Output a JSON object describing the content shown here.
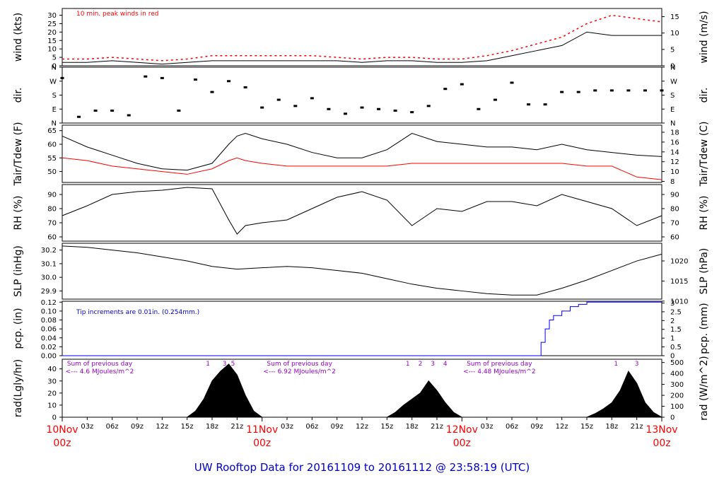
{
  "title": "UW Rooftop Data for 20161109  to  20161112 @ 23:58:19  (UTC)",
  "colors": {
    "primary": "#000000",
    "peak_wind": "#ff0000",
    "dewpoint": "#ff0000",
    "precip": "#0000ff",
    "title": "#0000cc",
    "date_label": "#ff0000",
    "radiation_note": "#9900cc",
    "precip_note": "#0000cc"
  },
  "chart_data": [
    {
      "id": "wind",
      "type": "line",
      "left_axis": {
        "label": "wind (kts)",
        "ticks": [
          "0",
          "5",
          "10",
          "15",
          "20",
          "25",
          "30"
        ],
        "range": [
          0,
          34
        ]
      },
      "right_axis": {
        "label": "wind (m/s)",
        "ticks": [
          "0",
          "5",
          "10",
          "15"
        ],
        "range": [
          0,
          17.5
        ]
      },
      "annotation": "10 min. peak winds in red",
      "series": [
        {
          "role": "speed",
          "x": [
            0,
            3,
            6,
            9,
            12,
            15,
            18,
            21,
            24,
            27,
            30,
            33,
            36,
            39,
            42,
            45,
            48,
            51,
            54,
            57,
            60,
            63,
            66,
            69,
            72
          ],
          "y": [
            2,
            2,
            3,
            2,
            1,
            2,
            3,
            3,
            3,
            3,
            3,
            3,
            2,
            3,
            3,
            2,
            2,
            3,
            6,
            9,
            12,
            20,
            18,
            18,
            18
          ]
        },
        {
          "role": "peak",
          "x": [
            0,
            3,
            6,
            9,
            12,
            15,
            18,
            21,
            24,
            27,
            30,
            33,
            36,
            39,
            42,
            45,
            48,
            51,
            54,
            57,
            60,
            63,
            66,
            69,
            72
          ],
          "y": [
            4,
            4,
            5,
            4,
            3,
            4,
            6,
            6,
            6,
            6,
            6,
            5,
            4,
            5,
            5,
            4,
            4,
            6,
            9,
            13,
            17,
            25,
            30,
            28,
            26
          ]
        }
      ]
    },
    {
      "id": "dir",
      "type": "scatter",
      "left_axis": {
        "label": "dir.",
        "ticks": [
          "N",
          "E",
          "S",
          "W",
          "N"
        ],
        "range": [
          0,
          360
        ]
      },
      "right_axis": {
        "label": "dir.",
        "ticks": [
          "N",
          "E",
          "S",
          "W",
          "N"
        ],
        "range": [
          0,
          360
        ]
      },
      "series": [
        {
          "role": "direction",
          "x": [
            0,
            2,
            4,
            6,
            8,
            10,
            12,
            14,
            16,
            18,
            20,
            22,
            24,
            26,
            28,
            30,
            32,
            34,
            36,
            38,
            40,
            42,
            44,
            46,
            48,
            50,
            52,
            54,
            56,
            58,
            60,
            62,
            64,
            66,
            68,
            70,
            72
          ],
          "y": [
            290,
            40,
            80,
            80,
            50,
            300,
            290,
            80,
            280,
            200,
            270,
            230,
            100,
            150,
            110,
            160,
            90,
            60,
            100,
            90,
            80,
            70,
            110,
            220,
            250,
            90,
            150,
            260,
            120,
            120,
            200,
            200,
            210,
            210,
            210,
            210,
            210
          ]
        }
      ]
    },
    {
      "id": "temp",
      "type": "line",
      "left_axis": {
        "label": "Tair/Tdew (F)",
        "ticks": [
          "50",
          "55",
          "60",
          "65"
        ],
        "range": [
          46,
          67
        ]
      },
      "right_axis": {
        "label": "Tair/Tdew (C)",
        "ticks": [
          "8",
          "10",
          "12",
          "14",
          "16",
          "18"
        ],
        "range": [
          7.78,
          19.44
        ]
      },
      "series": [
        {
          "role": "air",
          "x": [
            0,
            3,
            6,
            9,
            12,
            15,
            18,
            20,
            21,
            22,
            24,
            27,
            30,
            33,
            36,
            39,
            42,
            45,
            48,
            51,
            54,
            57,
            60,
            63,
            66,
            69,
            72
          ],
          "y": [
            63,
            59,
            56,
            53,
            51,
            50.5,
            53,
            60,
            63,
            64,
            62,
            60,
            57,
            55,
            55,
            58,
            64,
            61,
            60,
            59,
            59,
            58,
            60,
            58,
            57,
            56,
            55.5
          ]
        },
        {
          "role": "dew",
          "x": [
            0,
            3,
            6,
            9,
            12,
            15,
            18,
            20,
            21,
            22,
            24,
            27,
            30,
            33,
            36,
            39,
            42,
            45,
            48,
            51,
            54,
            57,
            60,
            63,
            66,
            69,
            72
          ],
          "y": [
            55,
            54,
            52,
            51,
            50,
            49,
            51,
            54,
            55,
            54,
            53,
            52,
            52,
            52,
            52,
            52,
            53,
            53,
            53,
            53,
            53,
            53,
            53,
            52,
            52,
            48,
            47
          ]
        }
      ]
    },
    {
      "id": "rh",
      "type": "line",
      "left_axis": {
        "label": "RH (%)",
        "ticks": [
          "60",
          "70",
          "80",
          "90"
        ],
        "range": [
          57,
          97
        ]
      },
      "right_axis": {
        "label": "RH (%)",
        "ticks": [
          "60",
          "70",
          "80",
          "90"
        ],
        "range": [
          57,
          97
        ]
      },
      "series": [
        {
          "role": "rh",
          "x": [
            0,
            3,
            6,
            9,
            12,
            15,
            18,
            20,
            21,
            22,
            24,
            27,
            30,
            33,
            36,
            39,
            42,
            45,
            48,
            51,
            54,
            57,
            60,
            63,
            66,
            69,
            72
          ],
          "y": [
            75,
            82,
            90,
            92,
            93,
            95,
            94,
            72,
            62,
            68,
            70,
            72,
            80,
            88,
            92,
            86,
            68,
            80,
            78,
            85,
            85,
            82,
            90,
            85,
            80,
            68,
            75
          ]
        }
      ]
    },
    {
      "id": "slp",
      "type": "line",
      "left_axis": {
        "label": "SLP (inHg)",
        "ticks": [
          "29.9",
          "30.0",
          "30.1",
          "30.2"
        ],
        "range": [
          29.84,
          30.25
        ]
      },
      "right_axis": {
        "label": "SLP (hPa)",
        "ticks": [
          "1010",
          "1015",
          "1020"
        ],
        "range": [
          1010.5,
          1024.4
        ]
      },
      "series": [
        {
          "role": "pressure",
          "x": [
            0,
            3,
            6,
            9,
            12,
            15,
            18,
            21,
            24,
            27,
            30,
            33,
            36,
            39,
            42,
            45,
            48,
            51,
            54,
            57,
            60,
            63,
            66,
            69,
            72
          ],
          "y": [
            30.23,
            30.22,
            30.2,
            30.18,
            30.15,
            30.12,
            30.08,
            30.06,
            30.07,
            30.08,
            30.07,
            30.05,
            30.03,
            29.99,
            29.95,
            29.92,
            29.9,
            29.88,
            29.87,
            29.87,
            29.92,
            29.98,
            30.05,
            30.12,
            30.17
          ]
        }
      ]
    },
    {
      "id": "pcp",
      "type": "line",
      "left_axis": {
        "label": "pcp. (in)",
        "ticks": [
          "0.00",
          "0.02",
          "0.04",
          "0.06",
          "0.08",
          "0.10",
          "0.12"
        ],
        "range": [
          0,
          0.122
        ]
      },
      "right_axis": {
        "label": "pcp. (mm)",
        "ticks": [
          "0",
          "0.5",
          "1",
          "1.5",
          "2",
          "2.5",
          "3"
        ],
        "range": [
          0,
          3.1
        ]
      },
      "annotation": "Tip increments are 0.01in. (0.254mm.)",
      "series": [
        {
          "role": "cumulative",
          "x": [
            0,
            57,
            57.5,
            58,
            58.5,
            59,
            60,
            61,
            62,
            63,
            72
          ],
          "y": [
            0,
            0,
            0.03,
            0.06,
            0.08,
            0.09,
            0.1,
            0.11,
            0.115,
            0.12,
            0.12
          ]
        }
      ]
    },
    {
      "id": "rad",
      "type": "area",
      "left_axis": {
        "label": "rad(Lgly/hr)",
        "ticks": [
          "0",
          "10",
          "20",
          "30",
          "40"
        ],
        "range": [
          0,
          48
        ]
      },
      "right_axis": {
        "label": "rad (W/m^2)",
        "ticks": [
          "0",
          "100",
          "200",
          "300",
          "400",
          "500"
        ],
        "range": [
          0,
          530
        ]
      },
      "annotations": [
        {
          "line1": "Sum of previous day",
          "line2": "<--- 4.6 MJoules/m^2",
          "day": 0
        },
        {
          "line1": "Sum of previous day",
          "line2": "<--- 6.92 MJoules/m^2",
          "day": 1
        },
        {
          "line1": "Sum of previous day",
          "line2": "<--- 4.48 MJoules/m^2",
          "day": 2
        }
      ],
      "hour_markers": [
        {
          "day": 0,
          "labels": [
            "1",
            "3",
            "5"
          ],
          "x": [
            17.5,
            19.5,
            20.5
          ]
        },
        {
          "day": 1,
          "labels": [
            "1",
            "2",
            "3",
            "4"
          ],
          "x": [
            41.5,
            43,
            44.5,
            46
          ]
        },
        {
          "day": 2,
          "labels": [
            "1",
            "3"
          ],
          "x": [
            66.5,
            69
          ]
        }
      ],
      "series": [
        {
          "role": "radiation",
          "x": [
            0,
            15,
            16,
            17,
            18,
            19,
            20,
            21,
            22,
            23,
            24,
            39,
            40,
            41,
            42,
            43,
            44,
            45,
            46,
            47,
            48,
            63,
            64,
            65,
            66,
            67,
            68,
            69,
            70,
            71,
            72
          ],
          "y": [
            0,
            0,
            5,
            15,
            30,
            38,
            44,
            35,
            18,
            5,
            0,
            0,
            4,
            10,
            15,
            20,
            30,
            22,
            12,
            4,
            0,
            0,
            3,
            7,
            12,
            22,
            38,
            28,
            12,
            4,
            0
          ]
        }
      ]
    }
  ],
  "x_axis": {
    "range": [
      0,
      72
    ],
    "hour_ticks": [
      "03z",
      "06z",
      "09z",
      "12z",
      "15z",
      "18z",
      "21z"
    ],
    "days": [
      {
        "date": "10Nov",
        "hour": "00z"
      },
      {
        "date": "11Nov",
        "hour": "00z"
      },
      {
        "date": "12Nov",
        "hour": "00z"
      },
      {
        "date": "13Nov",
        "hour": "00z"
      }
    ]
  }
}
